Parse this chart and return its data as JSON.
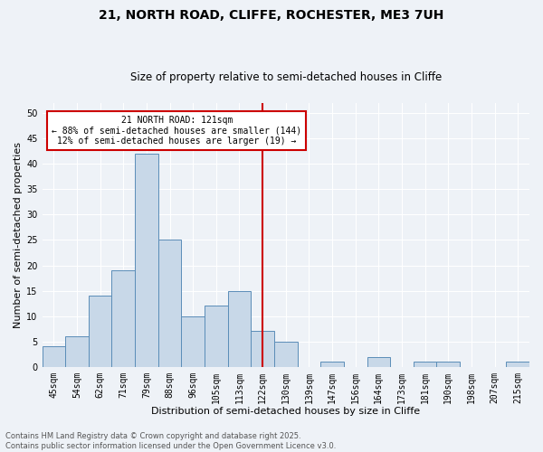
{
  "title1": "21, NORTH ROAD, CLIFFE, ROCHESTER, ME3 7UH",
  "title2": "Size of property relative to semi-detached houses in Cliffe",
  "xlabel": "Distribution of semi-detached houses by size in Cliffe",
  "ylabel": "Number of semi-detached properties",
  "bin_labels": [
    "45sqm",
    "54sqm",
    "62sqm",
    "71sqm",
    "79sqm",
    "88sqm",
    "96sqm",
    "105sqm",
    "113sqm",
    "122sqm",
    "130sqm",
    "139sqm",
    "147sqm",
    "156sqm",
    "164sqm",
    "173sqm",
    "181sqm",
    "190sqm",
    "198sqm",
    "207sqm",
    "215sqm"
  ],
  "bin_values": [
    4,
    6,
    14,
    19,
    42,
    25,
    10,
    12,
    15,
    7,
    5,
    0,
    1,
    0,
    2,
    0,
    1,
    1,
    0,
    0,
    1
  ],
  "bar_color": "#c8d8e8",
  "bar_edge_color": "#5b8db8",
  "annotation_text": "21 NORTH ROAD: 121sqm\n← 88% of semi-detached houses are smaller (144)\n12% of semi-detached houses are larger (19) →",
  "annotation_box_color": "#ffffff",
  "annotation_box_edge": "#cc0000",
  "vline_color": "#cc0000",
  "footer_text": "Contains HM Land Registry data © Crown copyright and database right 2025.\nContains public sector information licensed under the Open Government Licence v3.0.",
  "ylim": [
    0,
    52
  ],
  "yticks": [
    0,
    5,
    10,
    15,
    20,
    25,
    30,
    35,
    40,
    45,
    50
  ],
  "background_color": "#eef2f7",
  "grid_color": "#ffffff",
  "title1_fontsize": 10,
  "title2_fontsize": 8.5,
  "xlabel_fontsize": 8,
  "ylabel_fontsize": 8,
  "tick_fontsize": 7,
  "footer_fontsize": 6,
  "annotation_fontsize": 7,
  "vline_x": 9.0
}
